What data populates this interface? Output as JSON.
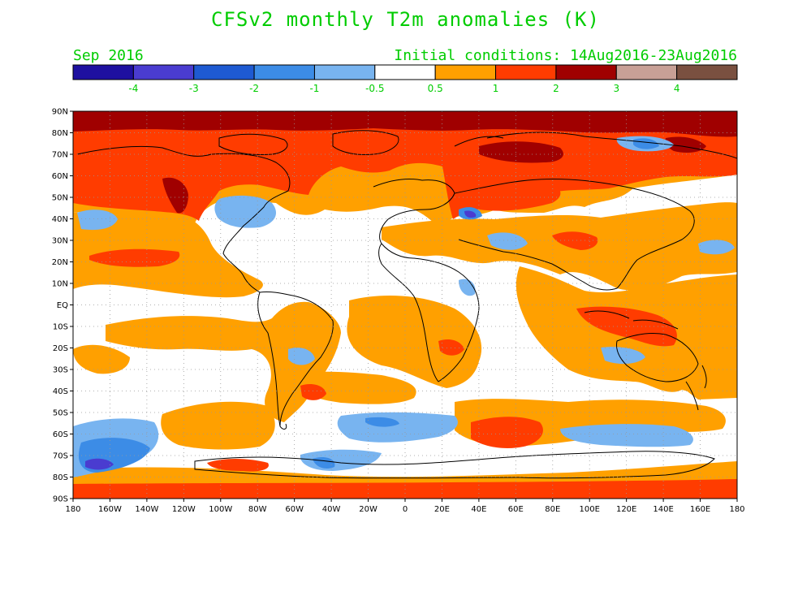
{
  "header": {
    "title": "CFSv2 monthly T2m anomalies (K)",
    "valid_month": "Sep 2016",
    "initial_conditions": "Initial conditions: 14Aug2016-23Aug2016"
  },
  "colorbar": {
    "colors": [
      "#1e10a0",
      "#4a3cd0",
      "#1e5ad2",
      "#3c8ce6",
      "#78b4f0",
      "#ffffff",
      "#ffa000",
      "#ff3c00",
      "#a00000",
      "#c8a096",
      "#7a5040"
    ],
    "labels": [
      "-4",
      "-3",
      "-2",
      "-1",
      "-0.5",
      "0.5",
      "1",
      "2",
      "3",
      "4"
    ]
  },
  "axes": {
    "lat_labels": [
      "90N",
      "80N",
      "70N",
      "60N",
      "50N",
      "40N",
      "30N",
      "20N",
      "10N",
      "EQ",
      "10S",
      "20S",
      "30S",
      "40S",
      "50S",
      "60S",
      "70S",
      "80S",
      "90S"
    ],
    "lon_labels": [
      "180",
      "160W",
      "140W",
      "120W",
      "100W",
      "80W",
      "60W",
      "40W",
      "20W",
      "0",
      "20E",
      "40E",
      "60E",
      "80E",
      "100E",
      "120E",
      "140E",
      "160E",
      "180"
    ]
  }
}
